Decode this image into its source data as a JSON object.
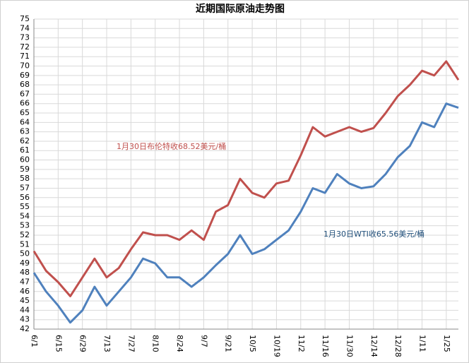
{
  "chart_data": {
    "type": "line",
    "title": "近期国际原油走势图",
    "categories": [
      "6/1",
      null,
      "6/15",
      null,
      "6/29",
      null,
      "7/13",
      null,
      "7/27",
      null,
      "8/10",
      null,
      "8/24",
      null,
      "9/7",
      null,
      "9/21",
      null,
      "10/5",
      null,
      "10/19",
      null,
      "11/2",
      null,
      "11/16",
      null,
      "11/30",
      null,
      "12/14",
      null,
      "12/28",
      null,
      "1/11",
      null,
      "1/25",
      null
    ],
    "series": [
      {
        "color": "#c0504d",
        "values": [
          50.3,
          48.2,
          47.0,
          45.5,
          47.5,
          49.5,
          47.5,
          48.5,
          50.5,
          52.3,
          52.0,
          52.0,
          51.5,
          52.5,
          51.5,
          54.5,
          55.2,
          58.0,
          56.5,
          56.0,
          57.5,
          57.8,
          60.5,
          63.5,
          62.5,
          63.0,
          63.5,
          63.0,
          63.4,
          65.0,
          66.8,
          68.0,
          69.5,
          69.0,
          70.5,
          68.52
        ]
      },
      {
        "color": "#4f81bd",
        "values": [
          48.0,
          46.0,
          44.5,
          42.7,
          44.0,
          46.5,
          44.5,
          46.0,
          47.5,
          49.5,
          49.0,
          47.5,
          47.5,
          46.5,
          47.5,
          48.8,
          50.0,
          52.0,
          50.0,
          50.5,
          51.5,
          52.5,
          54.5,
          57.0,
          56.5,
          58.5,
          57.5,
          57.0,
          57.2,
          58.5,
          60.3,
          61.5,
          64.0,
          63.5,
          66.0,
          65.56
        ]
      }
    ],
    "annotations": [
      {
        "text": "1月30日布伦特收68.52美元/桶",
        "color": "#c0504d"
      },
      {
        "text": "1月30日WTI收65.56美元/桶",
        "color": "#1f4e79"
      }
    ],
    "ylim": [
      42,
      75
    ],
    "yticks": [
      42,
      43,
      44,
      45,
      46,
      47,
      48,
      49,
      50,
      51,
      52,
      53,
      54,
      55,
      56,
      57,
      58,
      59,
      60,
      61,
      62,
      63,
      64,
      65,
      66,
      67,
      68,
      69,
      70,
      71,
      72,
      73,
      74,
      75
    ],
    "grid": true
  }
}
